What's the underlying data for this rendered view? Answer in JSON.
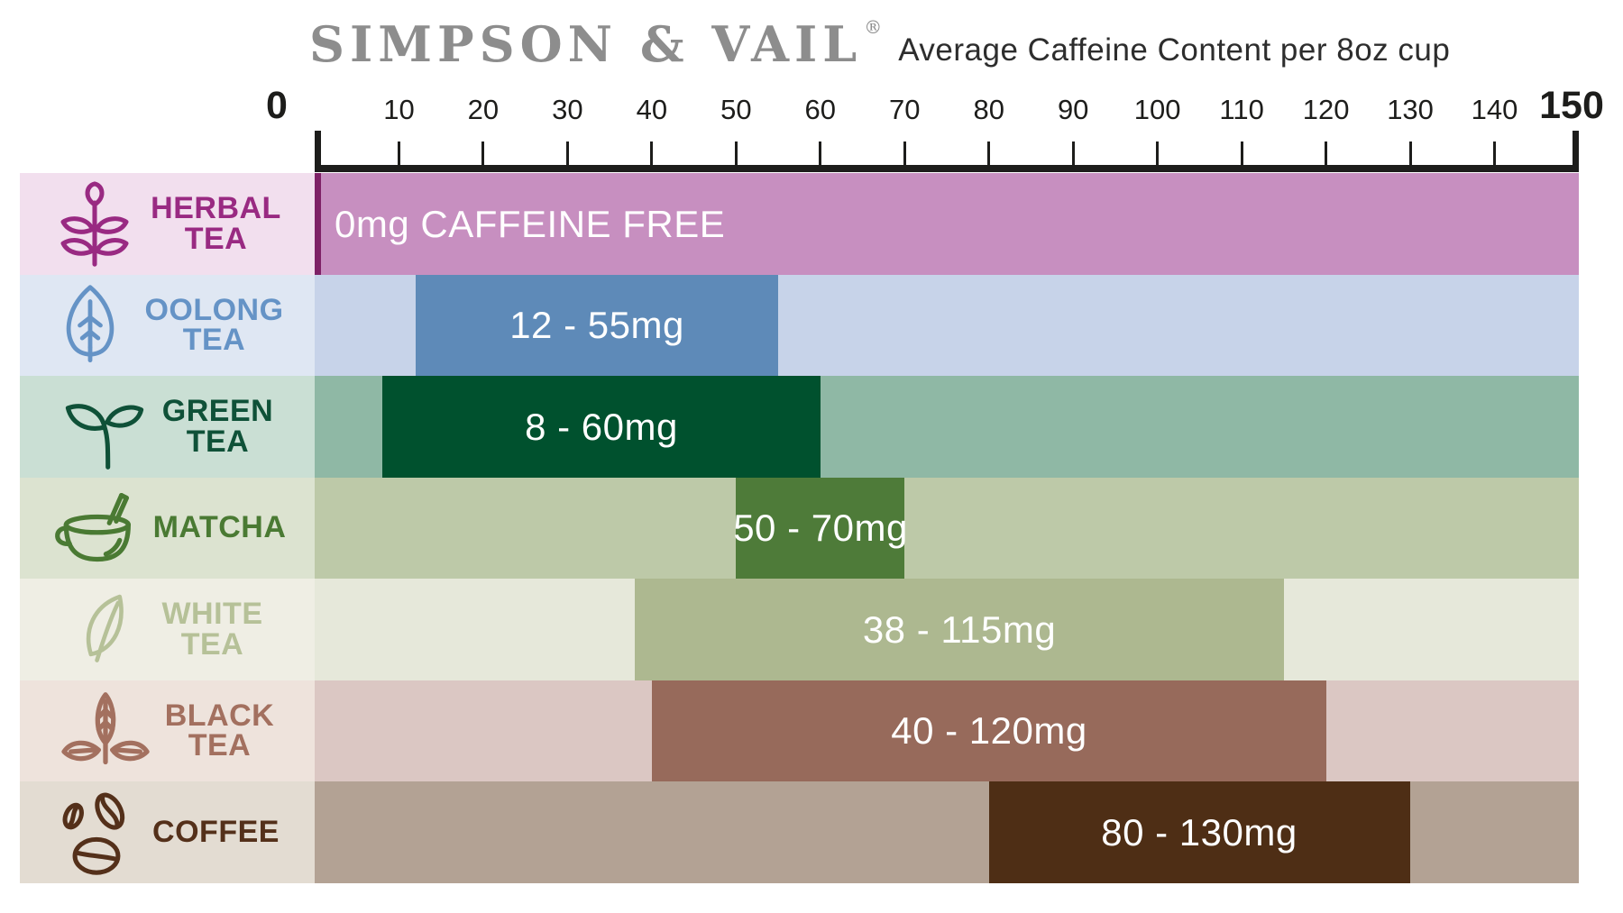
{
  "header": {
    "brand": "SIMPSON & VAIL",
    "registered_mark": "®",
    "subtitle": "Average Caffeine Content per 8oz cup"
  },
  "chart_data": {
    "type": "bar",
    "orientation": "horizontal-range",
    "title": "SIMPSON & VAIL — Average Caffeine Content per 8oz cup",
    "unit": "mg caffeine per 8oz cup",
    "xlim": [
      0,
      150
    ],
    "x_ticks": [
      0,
      10,
      20,
      30,
      40,
      50,
      60,
      70,
      80,
      90,
      100,
      110,
      120,
      130,
      140,
      150
    ],
    "axis_color": "#1d1d1b",
    "grid": false,
    "legend": false,
    "value_text_color": "#ffffff",
    "categories": [
      "HERBAL TEA",
      "OOLONG TEA",
      "GREEN TEA",
      "MATCHA",
      "WHITE TEA",
      "BLACK TEA",
      "COFFEE"
    ],
    "rows": [
      {
        "name": "HERBAL TEA",
        "label_lines": [
          "HERBAL",
          "TEA"
        ],
        "icon": "herbal-tea-icon",
        "min_mg": 0,
        "max_mg": 0,
        "value_label": "0mg CAFFEINE FREE",
        "value_align": "left",
        "colors": {
          "label_bg": "#f2dfee",
          "label_text": "#992a82",
          "track": "#c78fc0",
          "bar": "#7e2166"
        }
      },
      {
        "name": "OOLONG TEA",
        "label_lines": [
          "OOLONG",
          "TEA"
        ],
        "icon": "oolong-tea-icon",
        "min_mg": 12,
        "max_mg": 55,
        "value_label": "12 - 55mg",
        "value_align": "center",
        "colors": {
          "label_bg": "#dfe7f3",
          "label_text": "#6593c6",
          "track": "#c7d3e9",
          "bar": "#5e8ab8"
        }
      },
      {
        "name": "GREEN TEA",
        "label_lines": [
          "GREEN",
          "TEA"
        ],
        "icon": "green-tea-icon",
        "min_mg": 8,
        "max_mg": 60,
        "value_label": "8 - 60mg",
        "value_align": "center",
        "colors": {
          "label_bg": "#cadfd4",
          "label_text": "#0f5138",
          "track": "#8fb8a5",
          "bar": "#00512e"
        }
      },
      {
        "name": "MATCHA",
        "label_lines": [
          "MATCHA"
        ],
        "icon": "matcha-icon",
        "min_mg": 50,
        "max_mg": 70,
        "value_label": "50 - 70mg",
        "value_align": "center",
        "colors": {
          "label_bg": "#dce3d0",
          "label_text": "#4a7a33",
          "track": "#bdc9a8",
          "bar": "#4e7b39"
        }
      },
      {
        "name": "WHITE TEA",
        "label_lines": [
          "WHITE",
          "TEA"
        ],
        "icon": "white-tea-icon",
        "min_mg": 38,
        "max_mg": 115,
        "value_label": "38 - 115mg",
        "value_align": "center",
        "colors": {
          "label_bg": "#efeee4",
          "label_text": "#b6c198",
          "track": "#e6e8da",
          "bar": "#adb890"
        }
      },
      {
        "name": "BLACK TEA",
        "label_lines": [
          "BLACK",
          "TEA"
        ],
        "icon": "black-tea-icon",
        "min_mg": 40,
        "max_mg": 120,
        "value_label": "40 - 120mg",
        "value_align": "center",
        "colors": {
          "label_bg": "#eee3dc",
          "label_text": "#a3705f",
          "track": "#dbc7c3",
          "bar": "#976a5b"
        }
      },
      {
        "name": "COFFEE",
        "label_lines": [
          "COFFEE"
        ],
        "icon": "coffee-icon",
        "min_mg": 80,
        "max_mg": 130,
        "value_label": "80 - 130mg",
        "value_align": "center",
        "colors": {
          "label_bg": "#e3dcd2",
          "label_text": "#54301a",
          "track": "#b3a294",
          "bar": "#4e2e15"
        }
      }
    ]
  }
}
